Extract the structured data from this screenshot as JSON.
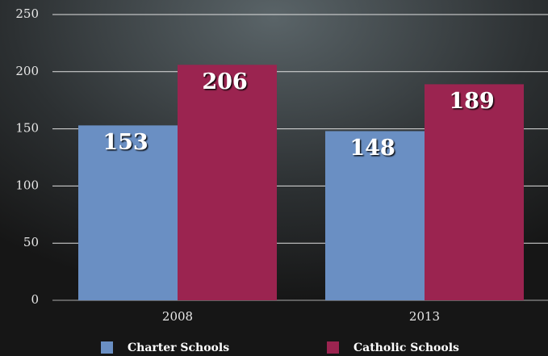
{
  "chart_data": {
    "type": "bar",
    "categories": [
      "2008",
      "2013"
    ],
    "series": [
      {
        "name": "Charter Schools",
        "color": "#6a8fc3",
        "values": [
          153,
          148
        ]
      },
      {
        "name": "Catholic Schools",
        "color": "#9b2450",
        "values": [
          206,
          189
        ]
      }
    ],
    "ylim": [
      0,
      250
    ],
    "yticks": [
      0,
      50,
      100,
      150,
      200,
      250
    ],
    "grid": true,
    "legend": "bottom"
  }
}
